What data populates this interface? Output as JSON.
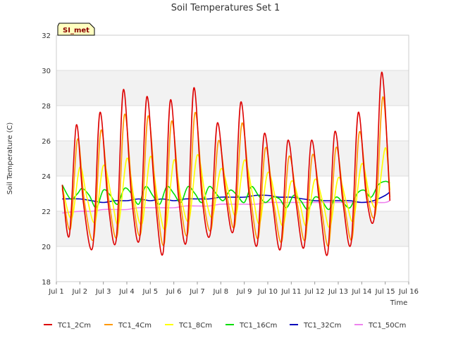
{
  "chart_data": {
    "type": "line",
    "title": "Soil Temperatures Set 1",
    "xlabel": "Time",
    "ylabel": "Soil Temperature (C)",
    "badge": "SI_met",
    "xlim": [
      1,
      16
    ],
    "ylim": [
      18,
      32
    ],
    "x_ticks": [
      {
        "value": 1,
        "label": "Jul 1"
      },
      {
        "value": 2,
        "label": "Jul 2"
      },
      {
        "value": 3,
        "label": "Jul 3"
      },
      {
        "value": 4,
        "label": "Jul 4"
      },
      {
        "value": 5,
        "label": "Jul 5"
      },
      {
        "value": 6,
        "label": "Jul 6"
      },
      {
        "value": 7,
        "label": "Jul 7"
      },
      {
        "value": 8,
        "label": "Jul 8"
      },
      {
        "value": 9,
        "label": "Jul 9"
      },
      {
        "value": 10,
        "label": "Jul 10"
      },
      {
        "value": 11,
        "label": "Jul 11"
      },
      {
        "value": 12,
        "label": "Jul 12"
      },
      {
        "value": 13,
        "label": "Jul 13"
      },
      {
        "value": 14,
        "label": "Jul 14"
      },
      {
        "value": 15,
        "label": "Jul 15"
      },
      {
        "value": 16,
        "label": "Jul 16"
      }
    ],
    "y_ticks": [
      18,
      20,
      22,
      24,
      26,
      28,
      30,
      32
    ],
    "grid": true,
    "legend_position": "bottom",
    "series": [
      {
        "name": "TC1_2Cm",
        "color": "#dd0000",
        "x": [
          1.25,
          1.55,
          1.85,
          2.15,
          2.55,
          2.85,
          3.2,
          3.55,
          3.85,
          4.2,
          4.55,
          4.85,
          5.2,
          5.55,
          5.85,
          6.2,
          6.55,
          6.85,
          7.2,
          7.55,
          7.85,
          8.2,
          8.55,
          8.85,
          9.2,
          9.55,
          9.85,
          10.2,
          10.55,
          10.85,
          11.2,
          11.55,
          11.85,
          12.2,
          12.55,
          12.85,
          13.2,
          13.55,
          13.85,
          14.2,
          14.55,
          14.85,
          15.2
        ],
        "y": [
          23.5,
          20.6,
          26.9,
          22.5,
          20.0,
          27.6,
          22.5,
          20.4,
          28.9,
          22.8,
          20.5,
          28.5,
          22.8,
          19.7,
          28.3,
          22.8,
          20.4,
          29.0,
          22.8,
          20.7,
          27.0,
          23.0,
          21.0,
          28.2,
          23.0,
          20.1,
          26.4,
          22.5,
          19.9,
          26.0,
          22.5,
          20.0,
          26.0,
          22.5,
          19.6,
          26.5,
          22.5,
          20.2,
          27.6,
          22.8,
          21.8,
          29.9,
          22.6
        ]
      },
      {
        "name": "TC1_4Cm",
        "color": "#ff9900",
        "x": [
          1.25,
          1.6,
          1.9,
          2.2,
          2.6,
          2.9,
          3.25,
          3.6,
          3.9,
          4.25,
          4.6,
          4.9,
          5.25,
          5.6,
          5.9,
          6.25,
          6.6,
          6.9,
          7.25,
          7.6,
          7.9,
          8.25,
          8.6,
          8.9,
          9.25,
          9.6,
          9.9,
          10.25,
          10.6,
          10.9,
          11.25,
          11.6,
          11.9,
          12.25,
          12.6,
          12.9,
          13.25,
          13.6,
          13.9,
          14.25,
          14.6,
          14.9,
          15.2
        ],
        "y": [
          23.3,
          21.0,
          26.1,
          22.5,
          20.5,
          26.6,
          22.5,
          20.7,
          27.5,
          22.8,
          20.8,
          27.4,
          22.8,
          20.2,
          27.1,
          22.8,
          20.8,
          27.6,
          22.8,
          21.0,
          26.0,
          23.0,
          21.2,
          27.0,
          23.0,
          20.5,
          25.6,
          22.5,
          20.3,
          25.1,
          22.5,
          20.4,
          25.2,
          22.5,
          20.1,
          25.6,
          22.5,
          20.5,
          26.5,
          22.8,
          22.0,
          28.5,
          22.8
        ]
      },
      {
        "name": "TC1_8Cm",
        "color": "#ffff00",
        "x": [
          1.25,
          1.65,
          2.0,
          2.3,
          2.65,
          3.0,
          3.35,
          3.65,
          4.0,
          4.3,
          4.65,
          5.0,
          5.3,
          5.65,
          6.0,
          6.3,
          6.65,
          7.0,
          7.35,
          7.65,
          8.0,
          8.35,
          8.65,
          9.0,
          9.35,
          9.65,
          10.0,
          10.35,
          10.65,
          11.0,
          11.35,
          11.65,
          12.0,
          12.35,
          12.65,
          13.0,
          13.35,
          13.65,
          14.0,
          14.35,
          14.65,
          15.0,
          15.2
        ],
        "y": [
          23.4,
          21.6,
          24.5,
          22.8,
          21.4,
          24.6,
          22.8,
          21.3,
          25.0,
          22.8,
          21.3,
          25.1,
          22.8,
          21.0,
          24.9,
          22.8,
          21.5,
          25.2,
          22.8,
          21.7,
          24.4,
          23.0,
          21.8,
          24.9,
          23.0,
          21.3,
          24.2,
          22.6,
          21.2,
          23.7,
          22.5,
          21.2,
          23.8,
          22.5,
          21.1,
          23.9,
          22.5,
          21.5,
          24.7,
          22.8,
          22.4,
          25.6,
          23.2
        ]
      },
      {
        "name": "TC1_16Cm",
        "color": "#00dd00",
        "x": [
          1.25,
          1.6,
          1.9,
          2.1,
          2.4,
          2.7,
          3.0,
          3.3,
          3.6,
          3.9,
          4.2,
          4.5,
          4.8,
          5.1,
          5.4,
          5.7,
          6.0,
          6.3,
          6.6,
          6.9,
          7.2,
          7.5,
          7.8,
          8.1,
          8.4,
          8.7,
          9.0,
          9.3,
          9.6,
          9.9,
          10.2,
          10.5,
          10.8,
          11.1,
          11.4,
          11.7,
          12.0,
          12.3,
          12.6,
          12.9,
          13.2,
          13.5,
          13.8,
          14.1,
          14.4,
          14.7,
          15.0,
          15.2
        ],
        "y": [
          23.5,
          22.7,
          23.0,
          23.3,
          22.9,
          22.2,
          23.2,
          22.9,
          22.4,
          23.3,
          23.0,
          22.4,
          23.4,
          22.9,
          22.4,
          23.4,
          23.0,
          22.5,
          23.4,
          23.0,
          22.5,
          23.4,
          23.0,
          22.6,
          23.2,
          22.9,
          22.5,
          23.4,
          22.9,
          22.5,
          22.8,
          22.7,
          22.2,
          22.9,
          22.6,
          22.1,
          22.8,
          22.6,
          22.1,
          22.8,
          22.5,
          22.2,
          23.0,
          23.2,
          22.8,
          23.5,
          23.7,
          23.6
        ]
      },
      {
        "name": "TC1_32Cm",
        "color": "#0000bb",
        "x": [
          1.25,
          2,
          2.5,
          3,
          3.5,
          4,
          4.5,
          5,
          5.5,
          6,
          6.5,
          7,
          7.5,
          8,
          8.5,
          9,
          9.5,
          10,
          10.5,
          11,
          11.5,
          12,
          12.5,
          13,
          13.5,
          14,
          14.5,
          15,
          15.2
        ],
        "y": [
          22.7,
          22.7,
          22.6,
          22.5,
          22.6,
          22.6,
          22.7,
          22.6,
          22.7,
          22.6,
          22.7,
          22.7,
          22.7,
          22.8,
          22.8,
          22.8,
          22.9,
          22.9,
          22.8,
          22.8,
          22.7,
          22.6,
          22.6,
          22.6,
          22.6,
          22.5,
          22.6,
          22.9,
          23.1
        ]
      },
      {
        "name": "TC1_50Cm",
        "color": "#ee82ee",
        "x": [
          1.25,
          2,
          2.5,
          3,
          3.5,
          4,
          4.5,
          5,
          5.5,
          6,
          6.5,
          7,
          7.5,
          8,
          8.5,
          9,
          9.5,
          10,
          10.5,
          11,
          11.5,
          12,
          12.5,
          13,
          13.5,
          14,
          14.5,
          15,
          15.2
        ],
        "y": [
          21.9,
          22.0,
          22.0,
          22.1,
          22.1,
          22.1,
          22.2,
          22.2,
          22.2,
          22.2,
          22.3,
          22.3,
          22.3,
          22.4,
          22.4,
          22.4,
          22.4,
          22.5,
          22.5,
          22.5,
          22.5,
          22.5,
          22.5,
          22.5,
          22.5,
          22.5,
          22.5,
          22.5,
          22.6
        ]
      }
    ]
  }
}
